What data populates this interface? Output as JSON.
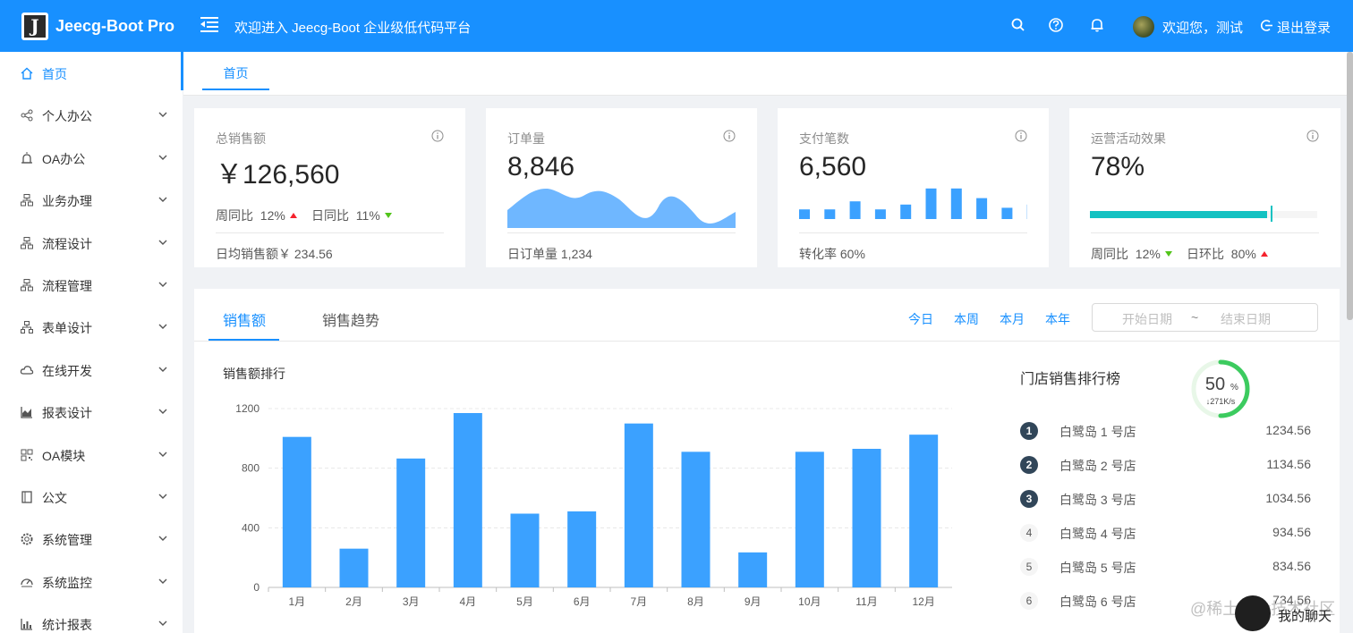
{
  "header": {
    "brand": "Jeecg-Boot Pro",
    "logo_letter": "J",
    "welcome": "欢迎进入 Jeecg-Boot 企业级低代码平台",
    "user_greeting": "欢迎您，测试",
    "logout": "退出登录",
    "color": "#1890ff"
  },
  "sidebar": {
    "items": [
      {
        "label": "首页",
        "icon": "home-icon"
      },
      {
        "label": "个人办公",
        "icon": "share-icon"
      },
      {
        "label": "OA办公",
        "icon": "alarm-icon"
      },
      {
        "label": "业务办理",
        "icon": "cluster-icon"
      },
      {
        "label": "流程设计",
        "icon": "cluster-icon"
      },
      {
        "label": "流程管理",
        "icon": "cluster-icon"
      },
      {
        "label": "表单设计",
        "icon": "apartment-icon"
      },
      {
        "label": "在线开发",
        "icon": "cloud-icon"
      },
      {
        "label": "报表设计",
        "icon": "area-chart-icon"
      },
      {
        "label": "OA模块",
        "icon": "qrcode-icon"
      },
      {
        "label": "公文",
        "icon": "book-icon"
      },
      {
        "label": "系统管理",
        "icon": "setting-icon"
      },
      {
        "label": "系统监控",
        "icon": "dashboard-icon"
      },
      {
        "label": "统计报表",
        "icon": "bar-chart-icon"
      }
    ]
  },
  "tabs": {
    "home": "首页"
  },
  "cards": {
    "sales": {
      "title": "总销售额",
      "value": "￥126,560",
      "week_label": "周同比",
      "week_value": "12%",
      "day_label": "日同比",
      "day_value": "11%",
      "footer": "日均销售额￥ 234.56"
    },
    "orders": {
      "title": "订单量",
      "value": "8,846",
      "footer": "日订单量 1,234"
    },
    "payments": {
      "title": "支付笔数",
      "value": "6,560",
      "footer": "转化率 60%",
      "bars": [
        0.3,
        0.3,
        0.55,
        0.3,
        0.45,
        0.95,
        0.95,
        0.65,
        0.35,
        0.45
      ]
    },
    "ops": {
      "title": "运营活动效果",
      "value": "78%",
      "progress": 0.78,
      "week_label": "周同比",
      "week_value": "12%",
      "day_label": "日环比",
      "day_value": "80%",
      "progress_color": "#13c2c2"
    }
  },
  "sales_panel": {
    "tabs": [
      "销售额",
      "销售趋势"
    ],
    "ranges": [
      "今日",
      "本周",
      "本月",
      "本年"
    ],
    "date_start_placeholder": "开始日期",
    "date_sep": "~",
    "date_end_placeholder": "结束日期",
    "chart_title": "销售额排行",
    "rank_title": "门店销售排行榜",
    "ring_percent": "50",
    "ring_percent_suffix": "%",
    "ring_speed": "↓271K/s",
    "ring_fraction": 0.5,
    "stores": [
      {
        "rank": "1",
        "name": "白鹭岛 1 号店",
        "value": "1234.56"
      },
      {
        "rank": "2",
        "name": "白鹭岛 2 号店",
        "value": "1134.56"
      },
      {
        "rank": "3",
        "name": "白鹭岛 3 号店",
        "value": "1034.56"
      },
      {
        "rank": "4",
        "name": "白鹭岛 4 号店",
        "value": "934.56"
      },
      {
        "rank": "5",
        "name": "白鹭岛 5 号店",
        "value": "834.56"
      },
      {
        "rank": "6",
        "name": "白鹭岛 6 号店",
        "value": "734.56"
      }
    ]
  },
  "chart_data": {
    "type": "bar",
    "categories": [
      "1月",
      "2月",
      "3月",
      "4月",
      "5月",
      "6月",
      "7月",
      "8月",
      "9月",
      "10月",
      "11月",
      "12月"
    ],
    "values": [
      1010,
      260,
      865,
      1170,
      495,
      510,
      1100,
      910,
      235,
      910,
      930,
      1025
    ],
    "yticks": [
      0,
      400,
      800,
      1200
    ],
    "ylim": [
      0,
      1200
    ],
    "color": "#3ba1ff",
    "grid": true
  },
  "floating": {
    "watermark": "@稀土掘金技术社区",
    "chat_label": "我的聊天"
  }
}
